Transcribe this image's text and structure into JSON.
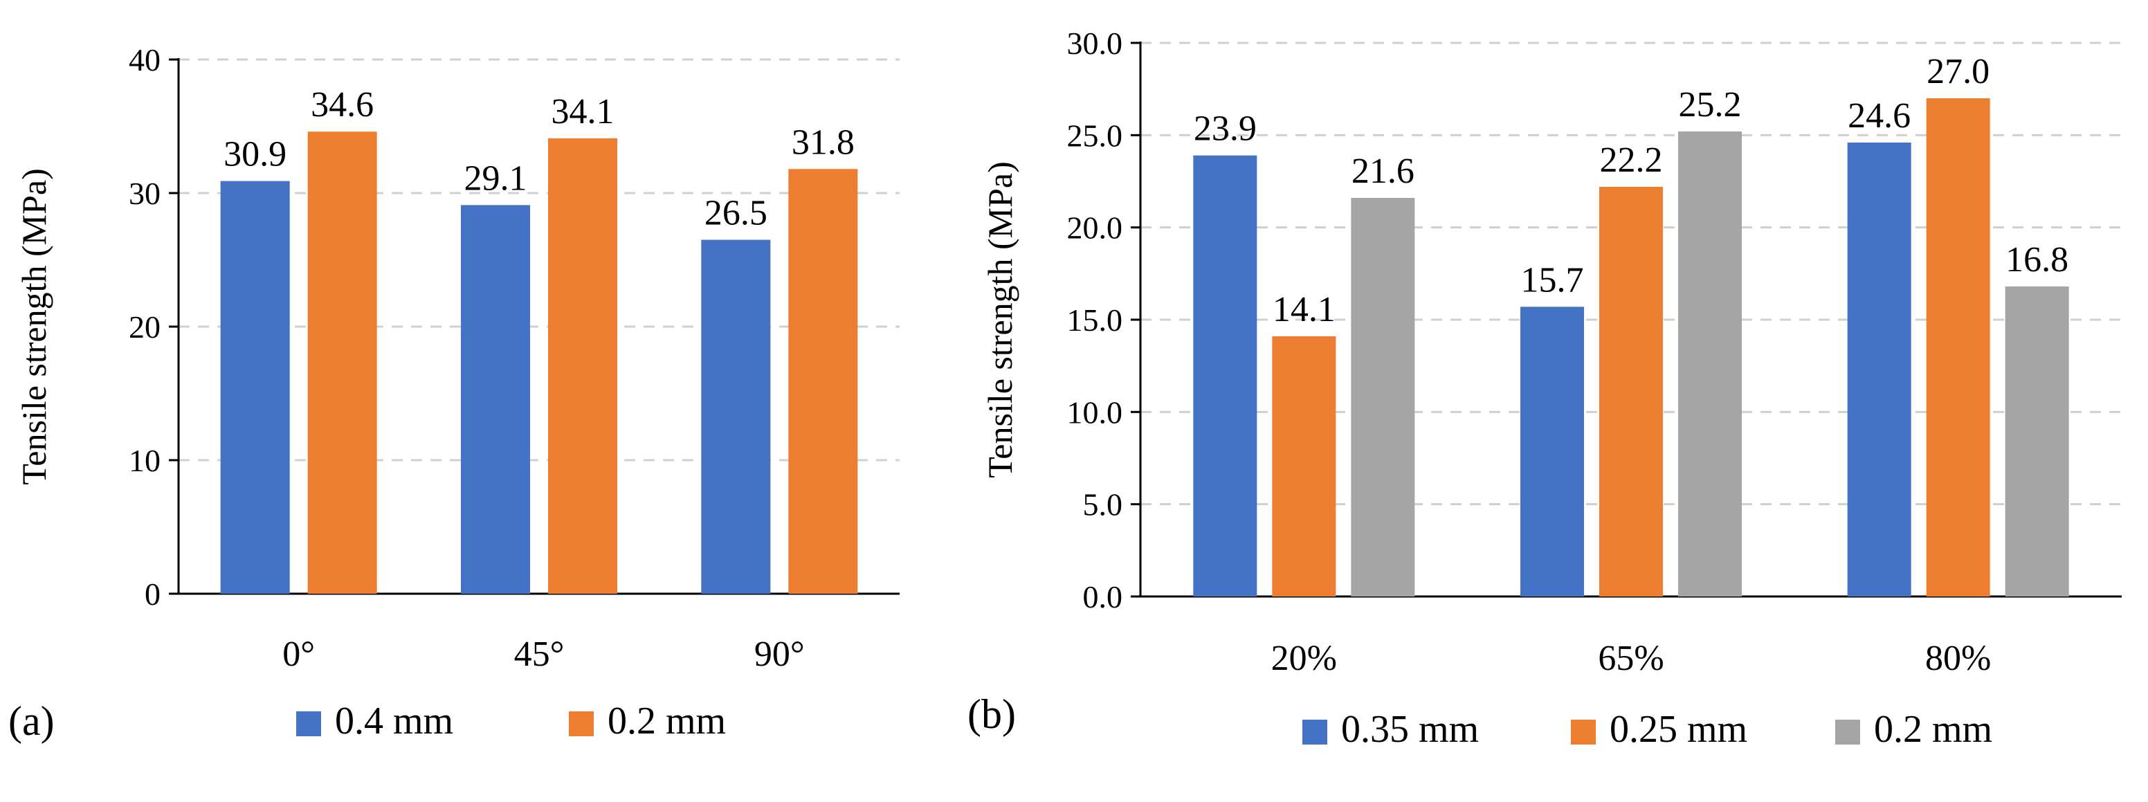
{
  "colors": {
    "blue": "#4472c4",
    "orange": "#ed7d31",
    "gray": "#a5a5a5"
  },
  "chart_data": [
    {
      "type": "bar",
      "panel_label": "(a)",
      "title": "",
      "xlabel": "",
      "ylabel": "Tensile strength (MPa)",
      "categories": [
        "0°",
        "45°",
        "90°"
      ],
      "ylim": [
        0,
        40
      ],
      "yticks": [
        0,
        10,
        20,
        30,
        40
      ],
      "ytick_labels": [
        "0",
        "10",
        "20",
        "30",
        "40"
      ],
      "grid": true,
      "legend_position": "bottom",
      "series": [
        {
          "name": "0.4 mm",
          "color": "#4472c4",
          "values": [
            30.9,
            29.1,
            26.5
          ],
          "labels": [
            "30.9",
            "29.1",
            "26.5"
          ]
        },
        {
          "name": "0.2 mm",
          "color": "#ed7d31",
          "values": [
            34.6,
            34.1,
            31.8
          ],
          "labels": [
            "34.6",
            "34.1",
            "31.8"
          ]
        }
      ]
    },
    {
      "type": "bar",
      "panel_label": "(b)",
      "title": "",
      "xlabel": "",
      "ylabel": "Tensile strength (MPa)",
      "categories": [
        "20%",
        "65%",
        "80%"
      ],
      "ylim": [
        0,
        30
      ],
      "yticks": [
        0,
        5,
        10,
        15,
        20,
        25,
        30
      ],
      "ytick_labels": [
        "0.0",
        "5.0",
        "10.0",
        "15.0",
        "20.0",
        "25.0",
        "30.0"
      ],
      "grid": true,
      "legend_position": "bottom",
      "series": [
        {
          "name": "0.35 mm",
          "color": "#4472c4",
          "values": [
            23.9,
            15.7,
            24.6
          ],
          "labels": [
            "23.9",
            "15.7",
            "24.6"
          ]
        },
        {
          "name": "0.25 mm",
          "color": "#ed7d31",
          "values": [
            14.1,
            22.2,
            27.0
          ],
          "labels": [
            "14.1",
            "22.2",
            "27.0"
          ]
        },
        {
          "name": "0.2 mm",
          "color": "#a5a5a5",
          "values": [
            21.6,
            25.2,
            16.8
          ],
          "labels": [
            "21.6",
            "25.2",
            "16.8"
          ]
        }
      ]
    }
  ]
}
